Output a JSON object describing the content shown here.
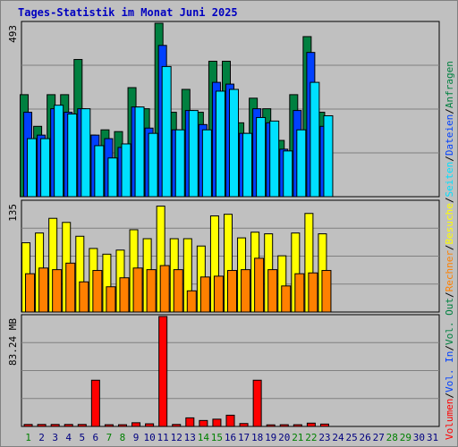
{
  "colors": {
    "title": "#0000c0",
    "panel_bg": "#c0c0c0",
    "grid": "#808080",
    "anfragen": "#008040",
    "dateien": "#0040ff",
    "seiten": "#00e0ff",
    "besuche": "#ffff00",
    "rechner": "#ff8000",
    "volumen": "#ff0000",
    "vol_in": "#0040ff",
    "vol_out": "#008040",
    "weekday_label": "#000080",
    "weekend_label": "#008000"
  },
  "chart_data": {
    "type": "bar",
    "title": "Tages-Statistik im Monat Juni 2025",
    "categories": [
      "1",
      "2",
      "3",
      "4",
      "5",
      "6",
      "7",
      "8",
      "9",
      "10",
      "11",
      "12",
      "13",
      "14",
      "15",
      "16",
      "17",
      "18",
      "19",
      "20",
      "21",
      "22",
      "23",
      "24",
      "25",
      "26",
      "27",
      "28",
      "29",
      "30",
      "31"
    ],
    "weekend_days": [
      1,
      7,
      8,
      14,
      15,
      21,
      22,
      28,
      29
    ],
    "panels": [
      {
        "id": "hits",
        "scale_label": "493",
        "ymax": 493,
        "series": [
          {
            "name": "Anfragen",
            "values": [
              290,
              200,
              290,
              290,
              390,
              175,
              190,
              185,
              310,
              250,
              493,
              240,
              305,
              240,
              385,
              385,
              210,
              280,
              250,
              160,
              290,
              455,
              240,
              0,
              0,
              0,
              0,
              0,
              0,
              0,
              0
            ]
          },
          {
            "name": "Dateien",
            "values": [
              240,
              175,
              250,
              240,
              250,
              175,
              165,
              140,
              255,
              195,
              430,
              190,
              245,
              205,
              325,
              320,
              180,
              250,
              210,
              135,
              245,
              410,
              200,
              0,
              0,
              0,
              0,
              0,
              0,
              0,
              0
            ]
          },
          {
            "name": "Seiten",
            "values": [
              165,
              165,
              260,
              235,
              250,
              145,
              110,
              150,
              255,
              180,
              370,
              190,
              245,
              190,
              300,
              305,
              180,
              225,
              215,
              130,
              190,
              325,
              230,
              0,
              0,
              0,
              0,
              0,
              0,
              0,
              0
            ]
          }
        ]
      },
      {
        "id": "visits",
        "scale_label": "135",
        "ymax": 135,
        "series": [
          {
            "name": "Besuche",
            "values": [
              85,
              97,
              115,
              110,
              93,
              78,
              71,
              76,
              101,
              90,
              130,
              90,
              90,
              81,
              118,
              120,
              91,
              98,
              96,
              69,
              97,
              121,
              96,
              0,
              0,
              0,
              0,
              0,
              0,
              0,
              0
            ]
          },
          {
            "name": "Rechner",
            "values": [
              47,
              54,
              52,
              60,
              37,
              51,
              31,
              42,
              54,
              52,
              57,
              52,
              26,
              43,
              44,
              51,
              52,
              66,
              52,
              32,
              47,
              48,
              51,
              0,
              0,
              0,
              0,
              0,
              0,
              0,
              0
            ]
          }
        ]
      },
      {
        "id": "volume",
        "scale_label": "83.24 MB",
        "ymax": 83.24,
        "series": [
          {
            "name": "Volumen",
            "values": [
              1.5,
              1.5,
              1.5,
              1.5,
              1.5,
              35,
              1.3,
              1.3,
              2.8,
              2,
              83.24,
              1.5,
              6.5,
              4.5,
              5.5,
              8.5,
              2.2,
              35,
              1.2,
              1.3,
              1.3,
              2.5,
              1.8,
              0,
              0,
              0,
              0,
              0,
              0,
              0,
              0
            ]
          }
        ]
      }
    ],
    "right_legend": [
      {
        "text": "Volumen",
        "color_key": "volumen"
      },
      {
        "text": "/",
        "color_key": null
      },
      {
        "text": "Vol. In",
        "color_key": "vol_in"
      },
      {
        "text": "/",
        "color_key": null
      },
      {
        "text": "Vol. Out",
        "color_key": "vol_out"
      },
      {
        "text": "/",
        "color_key": null
      },
      {
        "text": "Rechner",
        "color_key": "rechner"
      },
      {
        "text": "/",
        "color_key": null
      },
      {
        "text": "Besuche",
        "color_key": "besuche"
      },
      {
        "text": "/",
        "color_key": null
      },
      {
        "text": "Seiten",
        "color_key": "seiten"
      },
      {
        "text": "/",
        "color_key": null
      },
      {
        "text": "Dateien",
        "color_key": "dateien"
      },
      {
        "text": "/",
        "color_key": null
      },
      {
        "text": "Anfragen",
        "color_key": "anfragen"
      }
    ]
  }
}
